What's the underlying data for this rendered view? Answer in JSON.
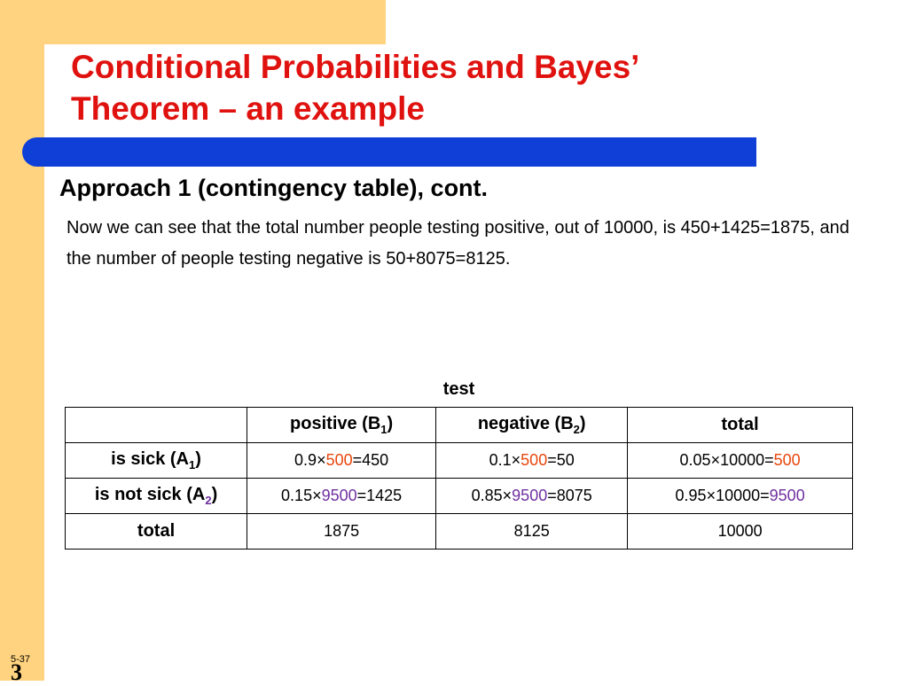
{
  "header": {
    "title": "Conditional Probabilities and Bayes’ Theorem – an example",
    "subtitle": "Approach 1 (contingency table), cont."
  },
  "body": {
    "paragraph": "Now we can see that the total number people testing positive, out of 10000, is 450+1425=1875, and the number of people testing negative is 50+8075=8125."
  },
  "table": {
    "caption": "test",
    "header": [
      [
        "positive (B",
        "1",
        ")"
      ],
      [
        "negative (B",
        "2",
        ")"
      ],
      [
        "total"
      ]
    ],
    "rows": [
      {
        "label": [
          "is sick (A",
          "1",
          ")"
        ],
        "cells": [
          [
            "0.9×",
            "500",
            "=450"
          ],
          [
            "0.1×",
            "500",
            "=50"
          ],
          [
            "0.05×10000=",
            "500"
          ]
        ]
      },
      {
        "label": [
          "is not sick (A",
          "2",
          ")"
        ],
        "cells": [
          [
            "0.15×",
            "9500",
            "=1425"
          ],
          [
            "0.85×",
            "9500",
            "=8075"
          ],
          [
            "0.95×10000=",
            "9500"
          ]
        ]
      },
      {
        "label": [
          "total"
        ],
        "cells": [
          [
            "1875"
          ],
          [
            "8125"
          ],
          [
            "10000"
          ]
        ]
      }
    ]
  },
  "footer": {
    "slide_number": "5-37",
    "logo": "3"
  }
}
